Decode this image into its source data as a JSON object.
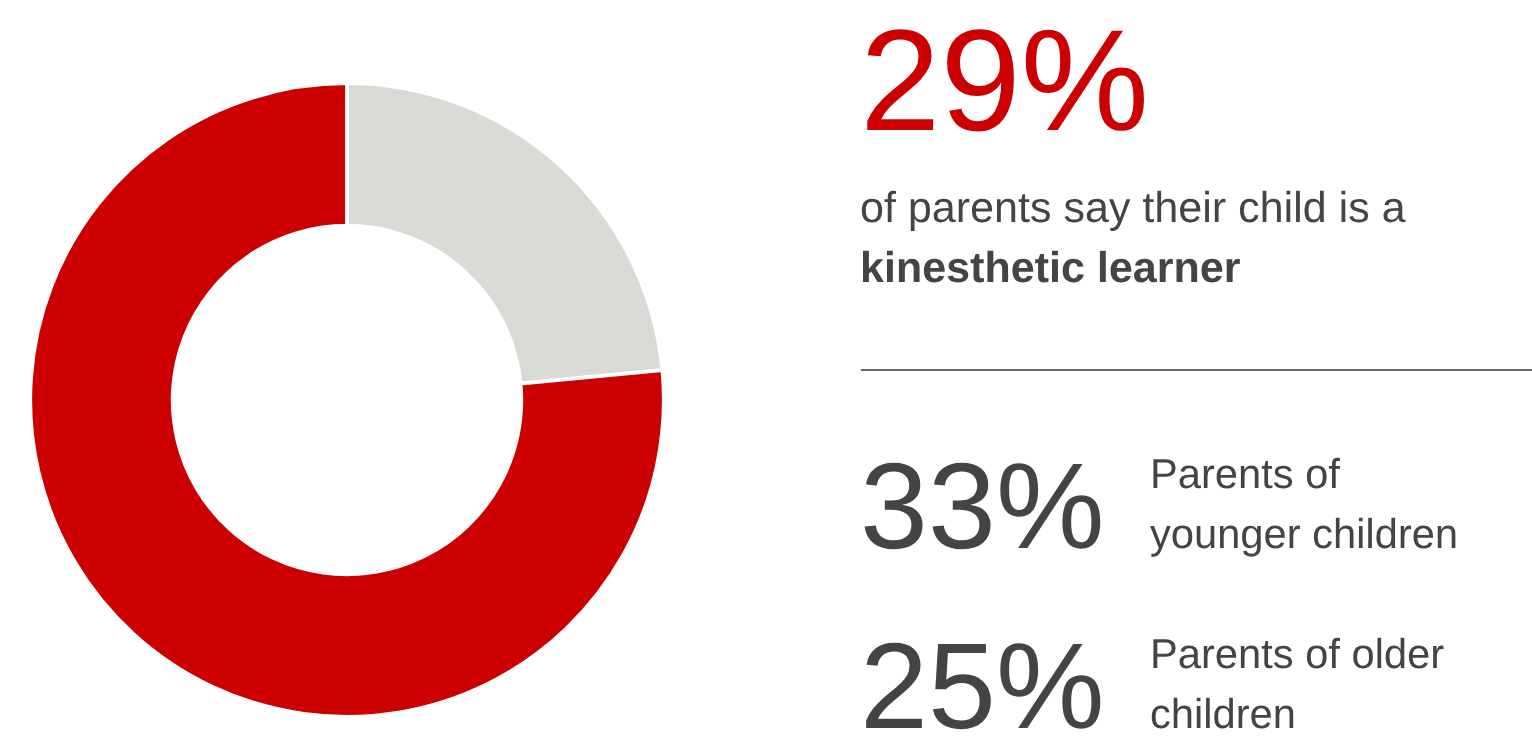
{
  "chart_data": [
    {
      "type": "donut",
      "categories": [
        null,
        null
      ],
      "values": [
        23.5,
        76.5
      ],
      "colors": [
        "#d9d9d6",
        "#cc0000"
      ]
    },
    {
      "type": "other",
      "annotations": [
        "29%",
        "of parents say their child is a",
        "kinesthetic learner",
        "33%",
        "Parents of",
        "younger children",
        "25%",
        "Parents of older",
        "children"
      ]
    }
  ]
}
